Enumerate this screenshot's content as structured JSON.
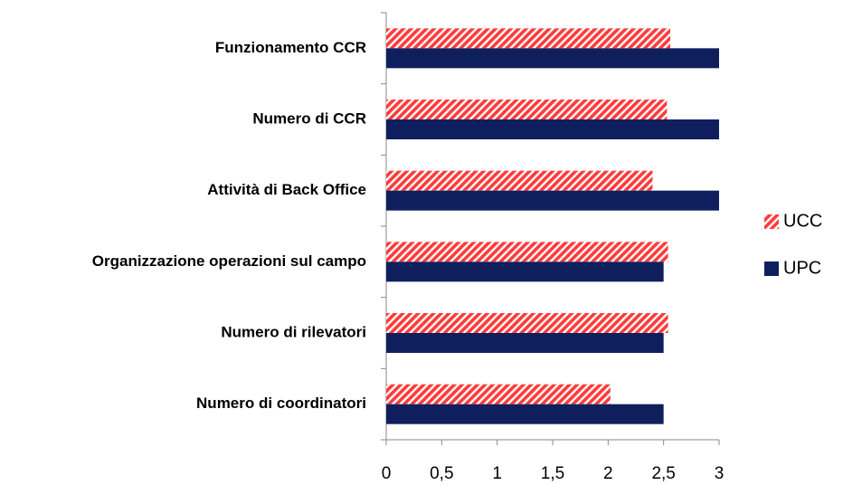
{
  "chart_data": {
    "type": "barh",
    "categories": [
      "Funzionamento CCR",
      "Numero di CCR",
      "Attività di Back Office",
      "Organizzazione operazioni sul campo",
      "Numero di rilevatori",
      "Numero di coordinatori"
    ],
    "series": [
      {
        "name": "UCC",
        "color": "#ff3b3b",
        "pattern": "hatch",
        "values": [
          2.56,
          2.53,
          2.4,
          2.54,
          2.54,
          2.02
        ]
      },
      {
        "name": "UPC",
        "color": "#0f1f5e",
        "pattern": "solid",
        "values": [
          3,
          3,
          3,
          2.5,
          2.5,
          2.5
        ]
      }
    ],
    "xlim": [
      0,
      3
    ],
    "xticks": [
      0,
      {
        "value": 0.5,
        "label": "0,5"
      },
      1,
      {
        "value": 1.5,
        "label": "1,5"
      },
      2,
      {
        "value": 2.5,
        "label": "2,5"
      },
      3
    ],
    "grid": false,
    "legend": "right"
  }
}
